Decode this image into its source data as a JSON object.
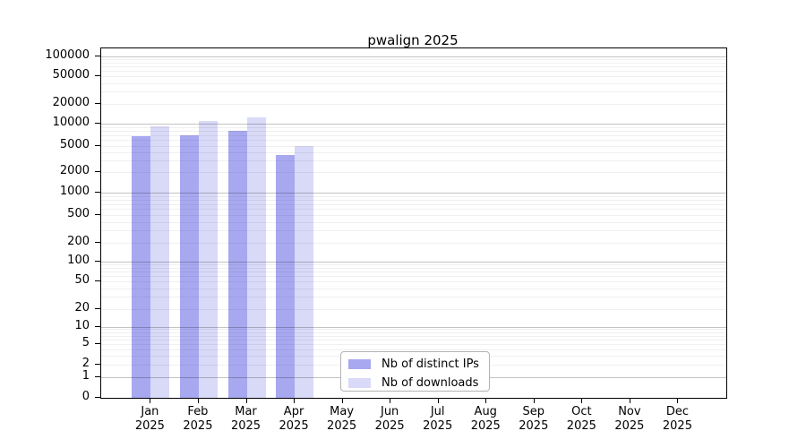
{
  "chart_data": {
    "type": "bar",
    "title": "pwalign 2025",
    "months": [
      "Jan",
      "Feb",
      "Mar",
      "Apr",
      "May",
      "Jun",
      "Jul",
      "Aug",
      "Sep",
      "Oct",
      "Nov",
      "Dec"
    ],
    "year": "2025",
    "categories": [
      "Jan 2025",
      "Feb 2025",
      "Mar 2025",
      "Apr 2025",
      "May 2025",
      "Jun 2025",
      "Jul 2025",
      "Aug 2025",
      "Sep 2025",
      "Oct 2025",
      "Nov 2025",
      "Dec 2025"
    ],
    "series": [
      {
        "name": "Nb of distinct IPs",
        "color": "#a8a8f0",
        "values": [
          6800,
          6900,
          8100,
          3700,
          null,
          null,
          null,
          null,
          null,
          null,
          null,
          null
        ]
      },
      {
        "name": "Nb of downloads",
        "color": "#d9d9f8",
        "values": [
          9100,
          11000,
          12500,
          5000,
          null,
          null,
          null,
          null,
          null,
          null,
          null,
          null
        ]
      }
    ],
    "yscale": "log-with-zero-baseline",
    "yticks": [
      0,
      1,
      2,
      5,
      10,
      20,
      50,
      100,
      200,
      500,
      1000,
      2000,
      5000,
      10000,
      20000,
      50000,
      100000
    ],
    "ylim": [
      0,
      100000
    ],
    "xlabel": "",
    "ylabel": "",
    "grid": "horizontal major and minor",
    "legend_position": "bottom-center"
  },
  "colors": {
    "bar_distinct_ips": "#a8a8f0",
    "bar_downloads": "#d9d9f8",
    "grid_major": "#c3c3c3",
    "grid_minor": "#ececec",
    "axis": "#000000",
    "background": "#ffffff"
  }
}
